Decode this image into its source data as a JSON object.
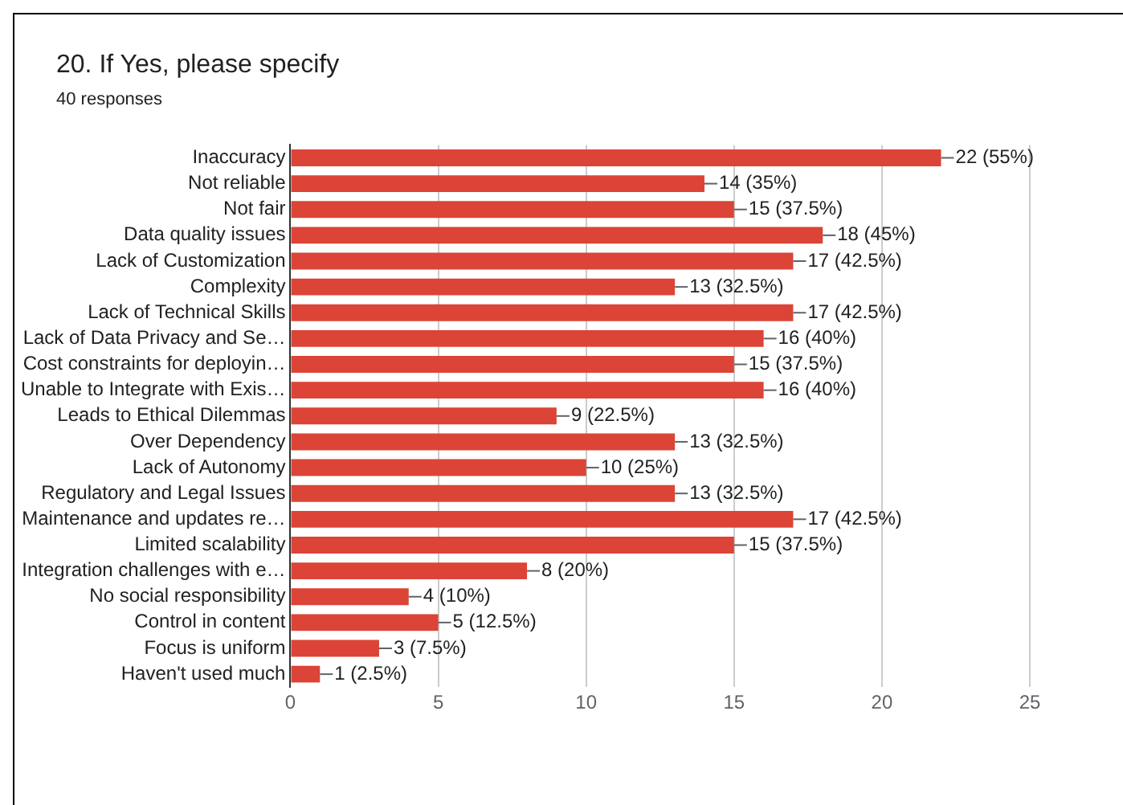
{
  "chart_data": {
    "type": "bar",
    "orientation": "horizontal",
    "title": "20. If Yes, please specify",
    "subtitle": "40 responses",
    "categories": [
      "Inaccuracy",
      "Not reliable",
      "Not fair",
      "Data quality issues",
      "Lack of Customization",
      "Complexity",
      "Lack of Technical Skills",
      "Lack of Data Privacy and Se…",
      "Cost constraints for deployin…",
      "Unable to Integrate with Exis…",
      "Leads to Ethical Dilemmas",
      "Over Dependency",
      "Lack of Autonomy",
      "Regulatory and Legal Issues",
      "Maintenance and updates re…",
      "Limited scalability",
      "Integration challenges with e…",
      "No social responsibility",
      "Control in content",
      "Focus is uniform",
      "Haven't used much"
    ],
    "values": [
      22,
      14,
      15,
      18,
      17,
      13,
      17,
      16,
      15,
      16,
      9,
      13,
      10,
      13,
      17,
      15,
      8,
      4,
      5,
      3,
      1
    ],
    "value_labels": [
      "22 (55%)",
      "14 (35%)",
      "15 (37.5%)",
      "18 (45%)",
      "17 (42.5%)",
      "13 (32.5%)",
      "17 (42.5%)",
      "16 (40%)",
      "15 (37.5%)",
      "16 (40%)",
      "9 (22.5%)",
      "13 (32.5%)",
      "10 (25%)",
      "13 (32.5%)",
      "17 (42.5%)",
      "15 (37.5%)",
      "8 (20%)",
      "4 (10%)",
      "5 (12.5%)",
      "3 (7.5%)",
      "1 (2.5%)"
    ],
    "color": "#db4437",
    "xlim": [
      0,
      25
    ],
    "xticks": [
      0,
      5,
      10,
      15,
      20,
      25
    ],
    "grid": "x",
    "legend": false
  }
}
